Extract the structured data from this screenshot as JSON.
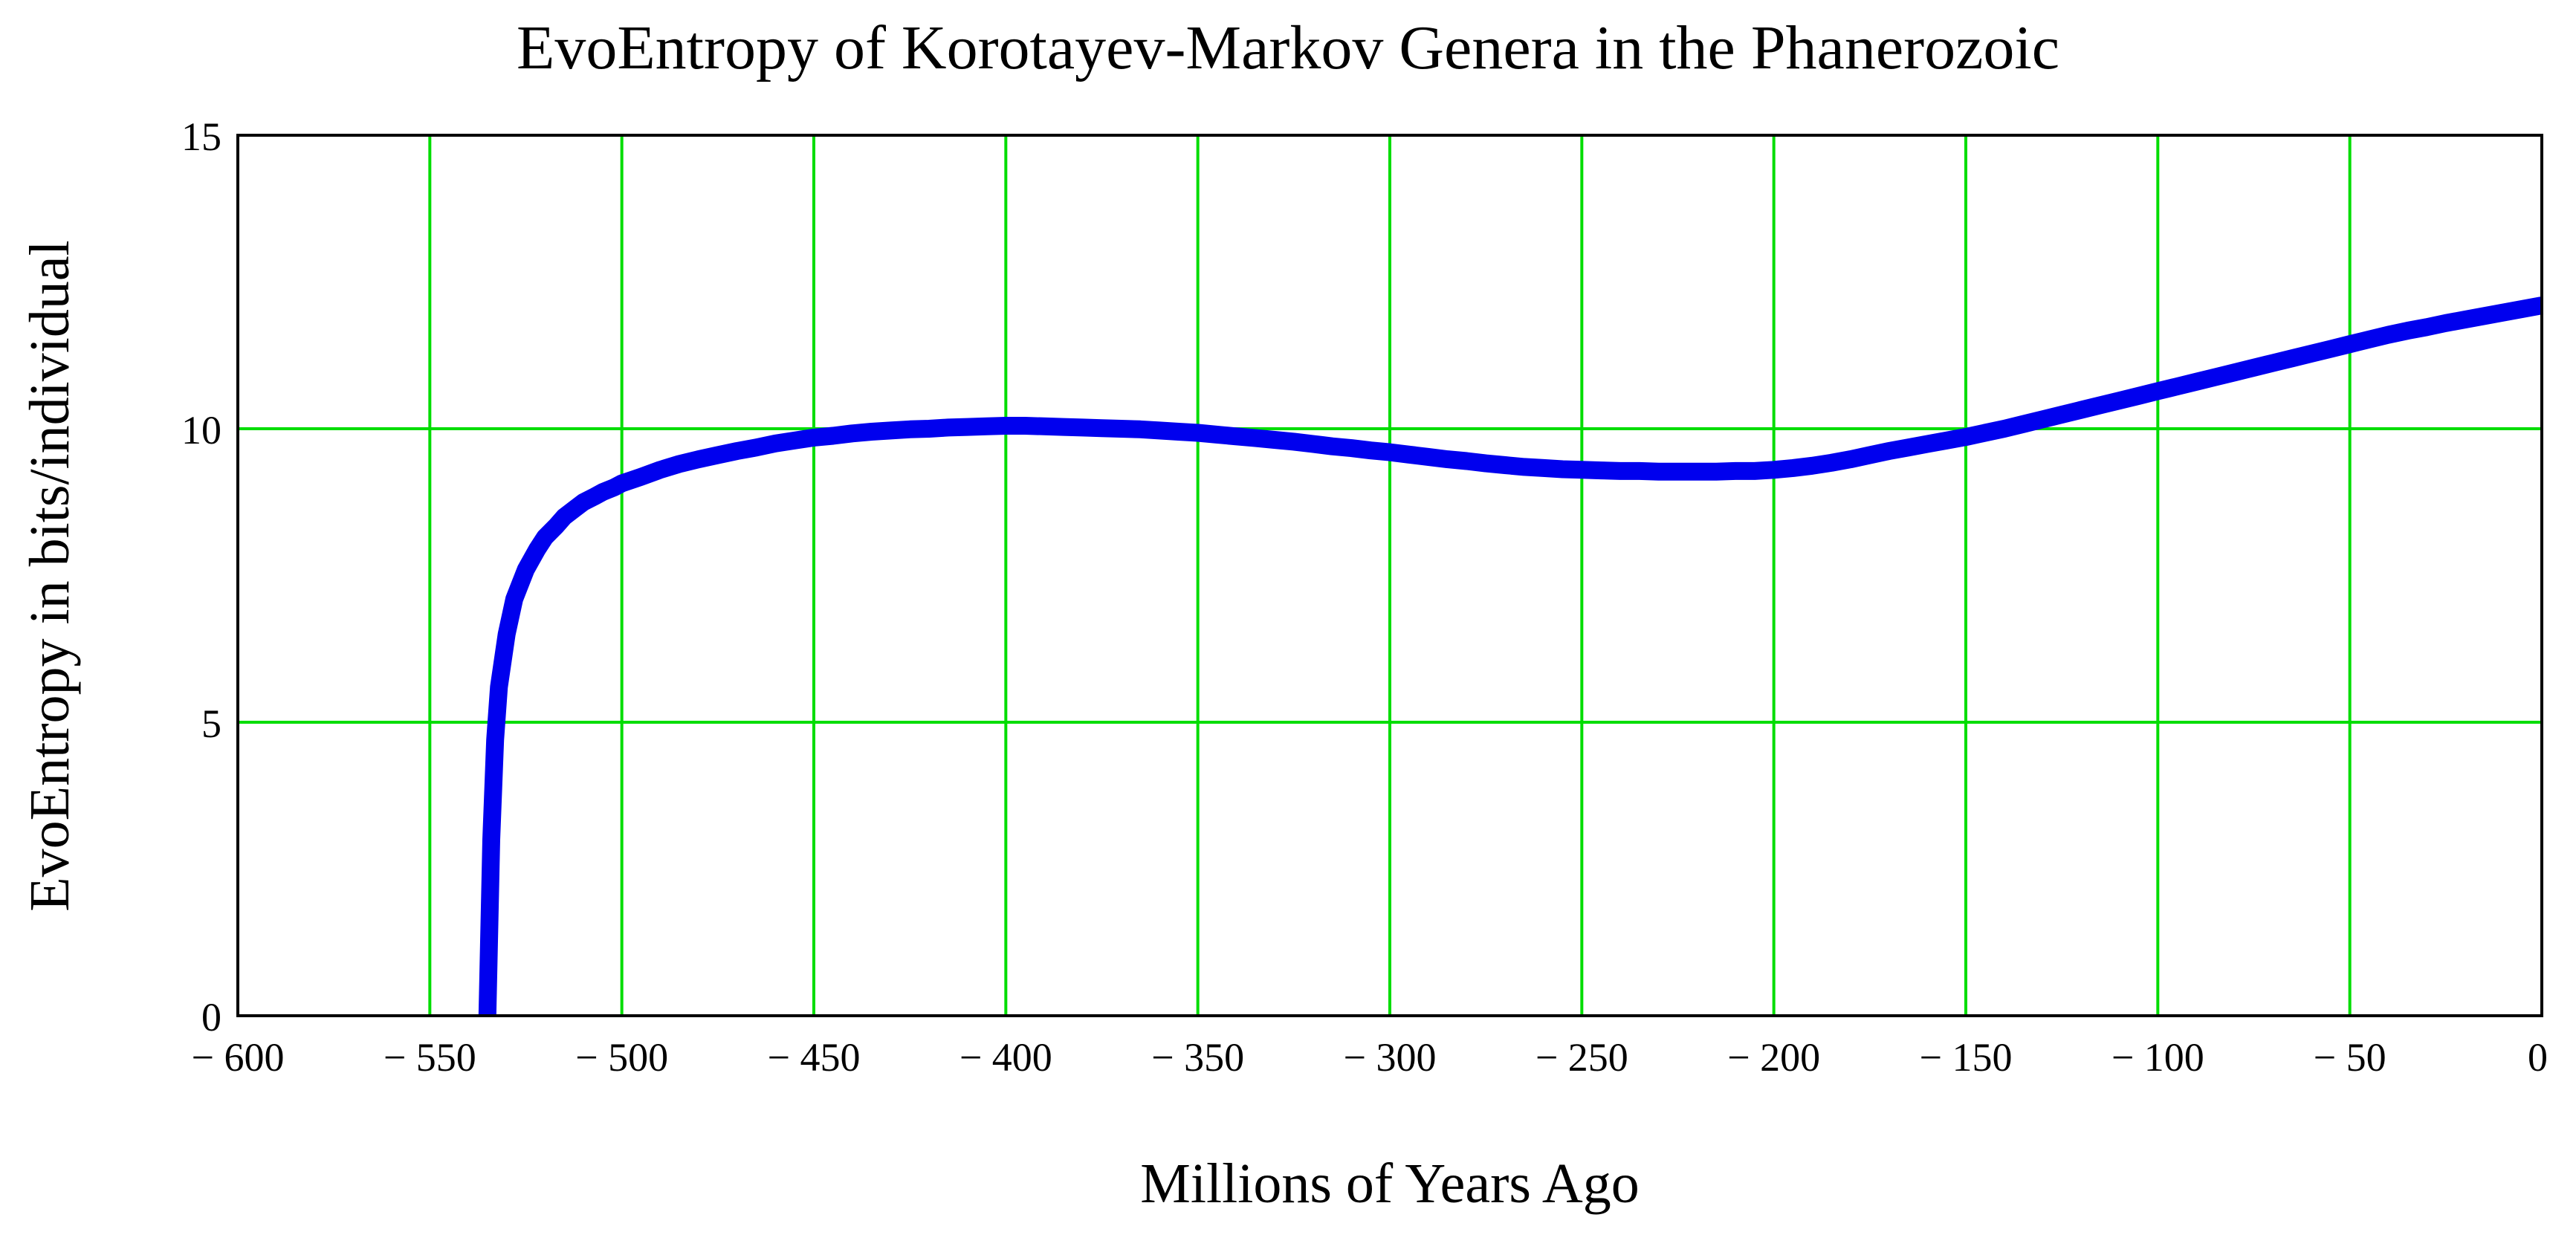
{
  "chart_data": {
    "type": "line",
    "title": "EvoEntropy of Korotayev-Markov Genera in the Phanerozoic",
    "xlabel": "Millions of Years Ago",
    "ylabel": "EvoEntropy in bits/individual",
    "xlim": [
      -600,
      0
    ],
    "ylim": [
      0,
      15
    ],
    "xticks": [
      -600,
      -550,
      -500,
      -450,
      -400,
      -350,
      -300,
      -250,
      -200,
      -150,
      -100,
      -50,
      0
    ],
    "xtick_labels": [
      "− 600",
      "− 550",
      "− 500",
      "− 450",
      "− 400",
      "− 350",
      "− 300",
      "− 250",
      "− 200",
      "− 150",
      "− 100",
      "− 50",
      "0"
    ],
    "yticks": [
      0,
      5,
      10,
      15
    ],
    "ytick_labels": [
      "0",
      "5",
      "10",
      "15"
    ],
    "grid": true,
    "grid_color": "#00dd00",
    "line_color": "#0000ee",
    "series": [
      {
        "x": [
          -535,
          -534.5,
          -534,
          -533,
          -532,
          -530,
          -528,
          -525,
          -522,
          -520,
          -517,
          -515,
          -512,
          -510,
          -507,
          -505,
          -502,
          -500,
          -495,
          -490,
          -485,
          -480,
          -475,
          -470,
          -465,
          -460,
          -455,
          -450,
          -445,
          -440,
          -435,
          -430,
          -425,
          -420,
          -415,
          -410,
          -405,
          -400,
          -395,
          -390,
          -385,
          -380,
          -375,
          -370,
          -365,
          -360,
          -355,
          -350,
          -345,
          -340,
          -335,
          -330,
          -325,
          -320,
          -315,
          -310,
          -305,
          -300,
          -295,
          -290,
          -285,
          -280,
          -275,
          -270,
          -265,
          -260,
          -255,
          -250,
          -245,
          -240,
          -235,
          -230,
          -225,
          -220,
          -215,
          -210,
          -205,
          -200,
          -195,
          -190,
          -185,
          -180,
          -175,
          -170,
          -165,
          -160,
          -155,
          -150,
          -145,
          -140,
          -135,
          -130,
          -125,
          -120,
          -115,
          -110,
          -105,
          -100,
          -95,
          -90,
          -85,
          -80,
          -75,
          -70,
          -65,
          -60,
          -55,
          -50,
          -45,
          -40,
          -35,
          -30,
          -25,
          -20,
          -15,
          -10,
          -5,
          0
        ],
        "y": [
          0,
          1.5,
          3,
          4.7,
          5.6,
          6.5,
          7.1,
          7.6,
          7.95,
          8.15,
          8.35,
          8.5,
          8.65,
          8.75,
          8.85,
          8.92,
          9.0,
          9.07,
          9.18,
          9.3,
          9.4,
          9.48,
          9.55,
          9.62,
          9.68,
          9.75,
          9.8,
          9.85,
          9.88,
          9.92,
          9.95,
          9.97,
          9.99,
          10.0,
          10.02,
          10.03,
          10.04,
          10.05,
          10.05,
          10.04,
          10.03,
          10.02,
          10.01,
          10.0,
          9.99,
          9.97,
          9.95,
          9.93,
          9.9,
          9.87,
          9.84,
          9.81,
          9.78,
          9.74,
          9.7,
          9.67,
          9.63,
          9.6,
          9.56,
          9.52,
          9.48,
          9.45,
          9.41,
          9.38,
          9.35,
          9.33,
          9.31,
          9.3,
          9.29,
          9.28,
          9.28,
          9.27,
          9.27,
          9.27,
          9.27,
          9.28,
          9.28,
          9.3,
          9.33,
          9.37,
          9.42,
          9.48,
          9.55,
          9.62,
          9.68,
          9.74,
          9.8,
          9.86,
          9.93,
          10.0,
          10.08,
          10.16,
          10.24,
          10.32,
          10.4,
          10.48,
          10.56,
          10.64,
          10.72,
          10.8,
          10.88,
          10.96,
          11.04,
          11.12,
          11.2,
          11.28,
          11.36,
          11.44,
          11.52,
          11.6,
          11.67,
          11.73,
          11.8,
          11.86,
          11.92,
          11.98,
          12.04,
          12.1
        ]
      }
    ]
  }
}
